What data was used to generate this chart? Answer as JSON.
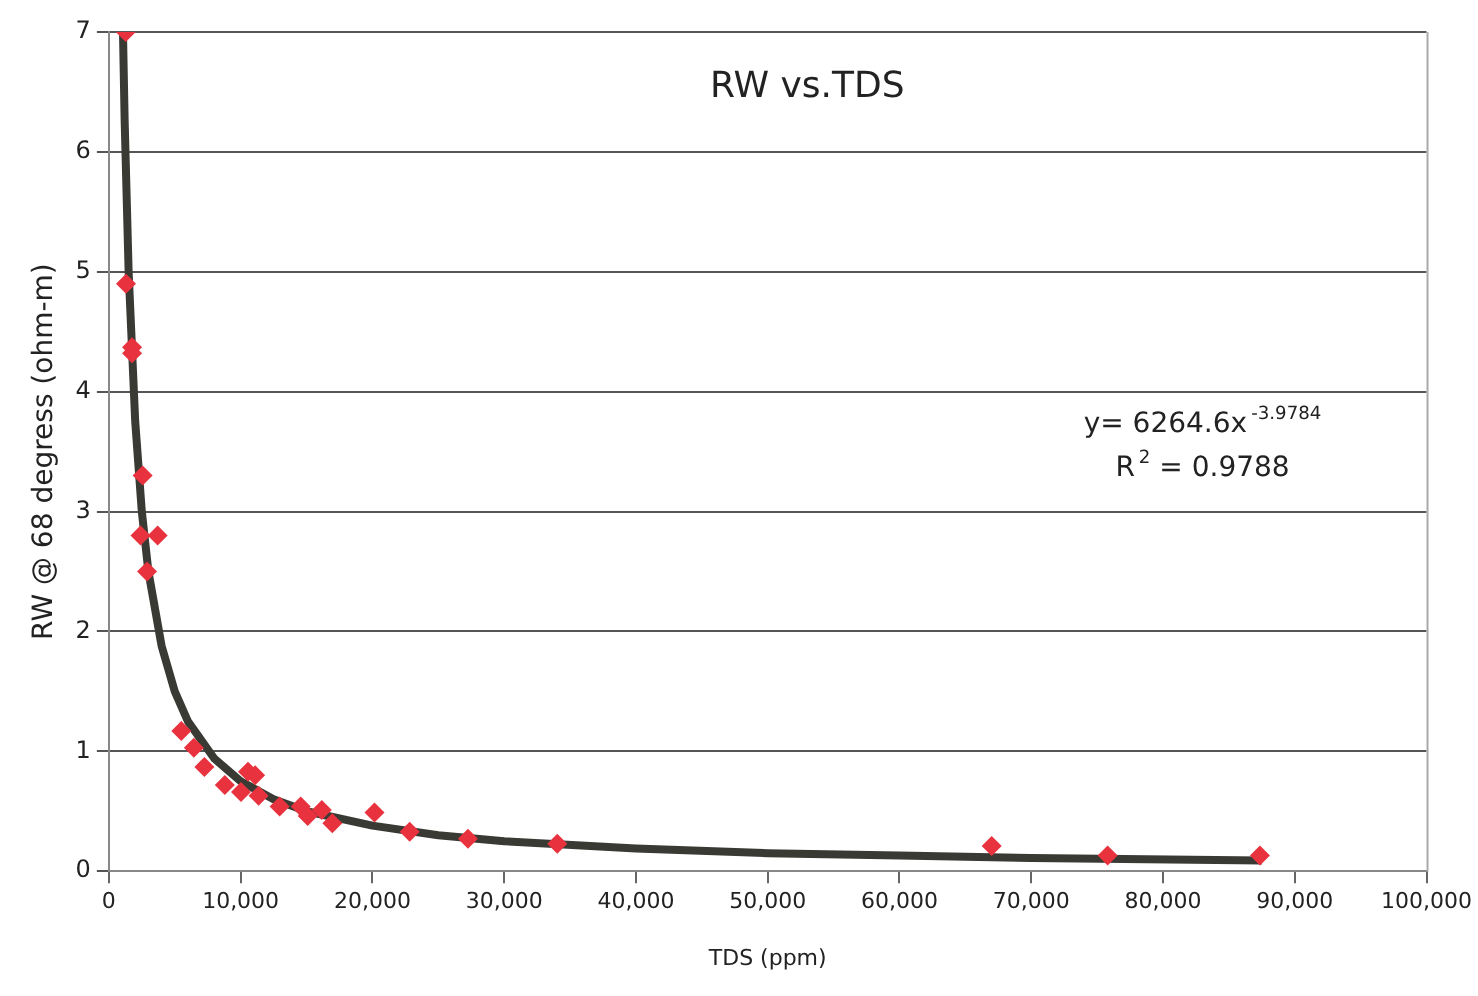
{
  "chart_data": {
    "type": "scatter",
    "title": "RW vs.TDS",
    "xlabel": "TDS (ppm)",
    "ylabel": "RW @ 68 degress (ohm-m)",
    "annotations": [
      "y= 6264.6x$^{-3.9784}$",
      "R$^{2}$ = 0.9788"
    ],
    "xlim": [
      0,
      100000
    ],
    "xticks": [
      {
        "value": 0,
        "label": "0"
      },
      {
        "value": 10000,
        "label": "10,000"
      },
      {
        "value": 20000,
        "label": "20,000"
      },
      {
        "value": 30000,
        "label": "30,000"
      },
      {
        "value": 40000,
        "label": "40,000"
      },
      {
        "value": 50000,
        "label": "50,000"
      },
      {
        "value": 60000,
        "label": "60,000"
      },
      {
        "value": 70000,
        "label": "70,000"
      },
      {
        "value": 80000,
        "label": "80,000"
      },
      {
        "value": 90000,
        "label": "90,000"
      },
      {
        "value": 100000,
        "label": "100,000"
      }
    ],
    "ylim": [
      0,
      7
    ],
    "yticks": [
      0,
      1,
      2,
      3,
      4,
      5,
      6,
      7
    ],
    "grid": "y",
    "legend": false,
    "marker": "diamond",
    "series": [
      {
        "color": "#e8333f",
        "x": [
          1280,
          1300,
          1760,
          1760,
          2560,
          2400,
          3700,
          2900,
          5500,
          6450,
          7250,
          8800,
          10560,
          11100,
          10030,
          11360,
          12960,
          14560,
          15090,
          16160,
          16960,
          20160,
          22830,
          27250,
          34030,
          67000,
          75800,
          87360
        ],
        "values": [
          7.0,
          4.9,
          4.37,
          4.32,
          3.3,
          2.8,
          2.8,
          2.5,
          1.17,
          1.03,
          0.87,
          0.72,
          0.83,
          0.8,
          0.66,
          0.63,
          0.54,
          0.54,
          0.46,
          0.51,
          0.4,
          0.49,
          0.33,
          0.27,
          0.23,
          0.21,
          0.13,
          0.13
        ]
      },
      {
        "type": "line",
        "color": "#3a3a35",
        "marker": "none",
        "x": [
          1070,
          1200,
          1500,
          2000,
          2500,
          3000,
          4000,
          5000,
          6000,
          8000,
          10000,
          12500,
          15000,
          20000,
          25000,
          30000,
          40000,
          50000,
          60000,
          70000,
          87500
        ],
        "values": [
          7.0,
          6.25,
          5.0,
          3.75,
          3.0,
          2.5,
          1.88,
          1.5,
          1.25,
          0.94,
          0.75,
          0.6,
          0.5,
          0.38,
          0.3,
          0.25,
          0.19,
          0.15,
          0.13,
          0.11,
          0.09
        ]
      }
    ]
  }
}
